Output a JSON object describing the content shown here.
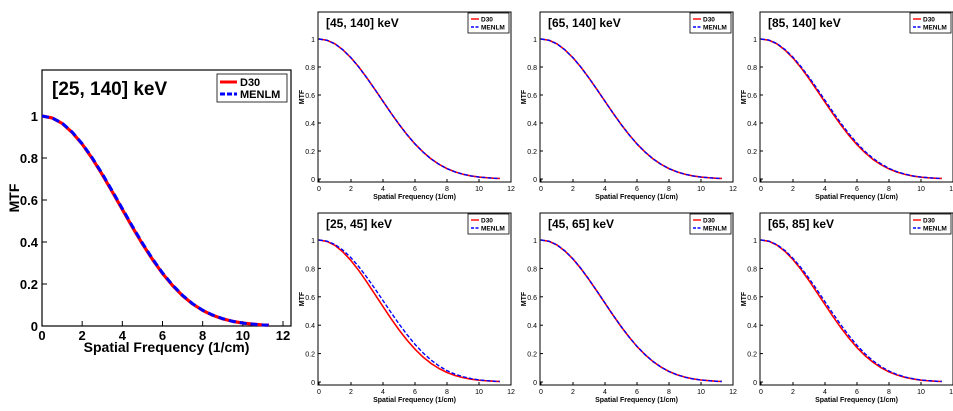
{
  "chart_data": [
    {
      "type": "line",
      "title": "[25, 140] keV",
      "xlabel": "Spatial Frequency (1/cm)",
      "ylabel": "MTF",
      "xlim": [
        0,
        12
      ],
      "ylim": [
        0,
        1
      ],
      "xticks": [
        "0",
        "2",
        "4",
        "6",
        "8",
        "10",
        "12"
      ],
      "yticks": [
        "0",
        "0.2",
        "0.4",
        "0.6",
        "0.8",
        "1"
      ],
      "grid": false,
      "legend": "top-right",
      "x": [
        0,
        0.5,
        1,
        1.5,
        2,
        2.5,
        3,
        3.5,
        4,
        4.5,
        5,
        5.5,
        6,
        6.5,
        7,
        7.5,
        8,
        8.5,
        9,
        9.5,
        10,
        10.5,
        11,
        11.3
      ],
      "series": [
        {
          "name": "D30",
          "color": "#ff0000",
          "values": [
            1.0,
            0.991,
            0.965,
            0.922,
            0.866,
            0.798,
            0.721,
            0.639,
            0.555,
            0.471,
            0.391,
            0.317,
            0.25,
            0.193,
            0.144,
            0.105,
            0.074,
            0.051,
            0.034,
            0.022,
            0.014,
            0.009,
            0.005,
            0.004
          ]
        },
        {
          "name": "MENLM",
          "color": "#0000ff",
          "values": [
            1.0,
            0.991,
            0.966,
            0.924,
            0.868,
            0.801,
            0.725,
            0.643,
            0.559,
            0.475,
            0.395,
            0.32,
            0.253,
            0.195,
            0.146,
            0.106,
            0.075,
            0.052,
            0.035,
            0.022,
            0.014,
            0.009,
            0.005,
            0.004
          ]
        }
      ]
    },
    {
      "type": "line",
      "title": "[45, 140] keV",
      "xlabel": "Spatial Frequency (1/cm)",
      "ylabel": "MTF",
      "xlim": [
        0,
        12
      ],
      "ylim": [
        0,
        1
      ],
      "xticks": [
        "0",
        "2",
        "4",
        "6",
        "8",
        "10",
        "12"
      ],
      "yticks": [
        "0",
        "0.2",
        "0.4",
        "0.6",
        "0.8",
        "1"
      ],
      "grid": false,
      "legend": "top-right",
      "x": [
        0,
        0.5,
        1,
        1.5,
        2,
        2.5,
        3,
        3.5,
        4,
        4.5,
        5,
        5.5,
        6,
        6.5,
        7,
        7.5,
        8,
        8.5,
        9,
        9.5,
        10,
        10.5,
        11,
        11.3
      ],
      "series": [
        {
          "name": "D30",
          "color": "#ff0000",
          "values": [
            1.0,
            0.991,
            0.965,
            0.922,
            0.866,
            0.798,
            0.721,
            0.639,
            0.555,
            0.471,
            0.391,
            0.317,
            0.25,
            0.193,
            0.144,
            0.105,
            0.074,
            0.051,
            0.034,
            0.022,
            0.014,
            0.009,
            0.005,
            0.004
          ]
        },
        {
          "name": "MENLM",
          "color": "#0000ff",
          "values": [
            1.0,
            0.991,
            0.965,
            0.922,
            0.866,
            0.798,
            0.721,
            0.639,
            0.555,
            0.471,
            0.391,
            0.317,
            0.25,
            0.193,
            0.144,
            0.105,
            0.074,
            0.051,
            0.034,
            0.022,
            0.014,
            0.009,
            0.005,
            0.004
          ]
        }
      ]
    },
    {
      "type": "line",
      "title": "[65, 140] keV",
      "xlabel": "Spatial Frequency (1/cm)",
      "ylabel": "MTF",
      "xlim": [
        0,
        12
      ],
      "ylim": [
        0,
        1
      ],
      "xticks": [
        "0",
        "2",
        "4",
        "6",
        "8",
        "10",
        "12"
      ],
      "yticks": [
        "0",
        "0.2",
        "0.4",
        "0.6",
        "0.8",
        "1"
      ],
      "grid": false,
      "legend": "top-right",
      "x": [
        0,
        0.5,
        1,
        1.5,
        2,
        2.5,
        3,
        3.5,
        4,
        4.5,
        5,
        5.5,
        6,
        6.5,
        7,
        7.5,
        8,
        8.5,
        9,
        9.5,
        10,
        10.5,
        11,
        11.3
      ],
      "series": [
        {
          "name": "D30",
          "color": "#ff0000",
          "values": [
            1.0,
            0.991,
            0.965,
            0.922,
            0.866,
            0.798,
            0.721,
            0.639,
            0.555,
            0.471,
            0.391,
            0.317,
            0.25,
            0.193,
            0.144,
            0.105,
            0.074,
            0.051,
            0.034,
            0.022,
            0.014,
            0.009,
            0.005,
            0.004
          ]
        },
        {
          "name": "MENLM",
          "color": "#0000ff",
          "values": [
            1.0,
            0.991,
            0.965,
            0.922,
            0.866,
            0.798,
            0.721,
            0.639,
            0.555,
            0.471,
            0.391,
            0.317,
            0.25,
            0.193,
            0.144,
            0.105,
            0.074,
            0.051,
            0.034,
            0.022,
            0.014,
            0.009,
            0.005,
            0.004
          ]
        }
      ]
    },
    {
      "type": "line",
      "title": "[85, 140] keV",
      "xlabel": "Spatial Frequency (1/cm)",
      "ylabel": "MTF",
      "xlim": [
        0,
        12
      ],
      "ylim": [
        0,
        1
      ],
      "xticks": [
        "0",
        "2",
        "4",
        "6",
        "8",
        "10",
        "12"
      ],
      "yticks": [
        "0",
        "0.2",
        "0.4",
        "0.6",
        "0.8",
        "1"
      ],
      "grid": false,
      "legend": "top-right",
      "x": [
        0,
        0.5,
        1,
        1.5,
        2,
        2.5,
        3,
        3.5,
        4,
        4.5,
        5,
        5.5,
        6,
        6.5,
        7,
        7.5,
        8,
        8.5,
        9,
        9.5,
        10,
        10.5,
        11,
        11.3
      ],
      "series": [
        {
          "name": "D30",
          "color": "#ff0000",
          "values": [
            1.0,
            0.991,
            0.965,
            0.921,
            0.864,
            0.795,
            0.717,
            0.634,
            0.549,
            0.465,
            0.385,
            0.311,
            0.245,
            0.188,
            0.14,
            0.102,
            0.072,
            0.049,
            0.033,
            0.021,
            0.013,
            0.008,
            0.005,
            0.004
          ]
        },
        {
          "name": "MENLM",
          "color": "#0000ff",
          "values": [
            1.0,
            0.992,
            0.967,
            0.925,
            0.87,
            0.803,
            0.727,
            0.646,
            0.562,
            0.478,
            0.398,
            0.323,
            0.256,
            0.197,
            0.148,
            0.108,
            0.076,
            0.052,
            0.035,
            0.022,
            0.014,
            0.009,
            0.005,
            0.004
          ]
        }
      ]
    },
    {
      "type": "line",
      "title": "[25, 45] keV",
      "xlabel": "Spatial Frequency (1/cm)",
      "ylabel": "MTF",
      "xlim": [
        0,
        12
      ],
      "ylim": [
        0,
        1
      ],
      "xticks": [
        "0",
        "2",
        "4",
        "6",
        "8",
        "10",
        "12"
      ],
      "yticks": [
        "0",
        "0.2",
        "0.4",
        "0.6",
        "0.8",
        "1"
      ],
      "grid": false,
      "legend": "top-right",
      "x": [
        0,
        0.5,
        1,
        1.5,
        2,
        2.5,
        3,
        3.5,
        4,
        4.5,
        5,
        5.5,
        6,
        6.5,
        7,
        7.5,
        8,
        8.5,
        9,
        9.5,
        10,
        10.5,
        11,
        11.3
      ],
      "series": [
        {
          "name": "D30",
          "color": "#ff0000",
          "values": [
            1.0,
            0.99,
            0.962,
            0.915,
            0.855,
            0.783,
            0.702,
            0.617,
            0.531,
            0.447,
            0.367,
            0.295,
            0.231,
            0.176,
            0.131,
            0.095,
            0.067,
            0.046,
            0.031,
            0.02,
            0.013,
            0.008,
            0.005,
            0.004
          ]
        },
        {
          "name": "MENLM",
          "color": "#0000ff",
          "values": [
            1.0,
            0.992,
            0.968,
            0.928,
            0.875,
            0.81,
            0.736,
            0.656,
            0.573,
            0.49,
            0.409,
            0.334,
            0.265,
            0.205,
            0.155,
            0.113,
            0.08,
            0.055,
            0.037,
            0.024,
            0.015,
            0.009,
            0.005,
            0.004
          ]
        }
      ]
    },
    {
      "type": "line",
      "title": "[45, 65] keV",
      "xlabel": "Spatial Frequency (1/cm)",
      "ylabel": "MTF",
      "xlim": [
        0,
        12
      ],
      "ylim": [
        0,
        1
      ],
      "xticks": [
        "0",
        "2",
        "4",
        "6",
        "8",
        "10",
        "12"
      ],
      "yticks": [
        "0",
        "0.2",
        "0.4",
        "0.6",
        "0.8",
        "1"
      ],
      "grid": false,
      "legend": "top-right",
      "x": [
        0,
        0.5,
        1,
        1.5,
        2,
        2.5,
        3,
        3.5,
        4,
        4.5,
        5,
        5.5,
        6,
        6.5,
        7,
        7.5,
        8,
        8.5,
        9,
        9.5,
        10,
        10.5,
        11,
        11.3
      ],
      "series": [
        {
          "name": "D30",
          "color": "#ff0000",
          "values": [
            1.0,
            0.991,
            0.965,
            0.922,
            0.866,
            0.798,
            0.721,
            0.639,
            0.555,
            0.471,
            0.391,
            0.317,
            0.25,
            0.193,
            0.144,
            0.105,
            0.074,
            0.051,
            0.034,
            0.022,
            0.014,
            0.009,
            0.005,
            0.004
          ]
        },
        {
          "name": "MENLM",
          "color": "#0000ff",
          "values": [
            1.0,
            0.991,
            0.966,
            0.923,
            0.867,
            0.799,
            0.722,
            0.64,
            0.556,
            0.472,
            0.392,
            0.318,
            0.251,
            0.193,
            0.145,
            0.105,
            0.074,
            0.051,
            0.034,
            0.022,
            0.014,
            0.009,
            0.005,
            0.004
          ]
        }
      ]
    },
    {
      "type": "line",
      "title": "[65, 85] keV",
      "xlabel": "Spatial Frequency (1/cm)",
      "ylabel": "MTF",
      "xlim": [
        0,
        12
      ],
      "ylim": [
        0,
        1
      ],
      "xticks": [
        "0",
        "2",
        "4",
        "6",
        "8",
        "10",
        "12"
      ],
      "yticks": [
        "0",
        "0.2",
        "0.4",
        "0.6",
        "0.8",
        "1"
      ],
      "grid": false,
      "legend": "top-right",
      "x": [
        0,
        0.5,
        1,
        1.5,
        2,
        2.5,
        3,
        3.5,
        4,
        4.5,
        5,
        5.5,
        6,
        6.5,
        7,
        7.5,
        8,
        8.5,
        9,
        9.5,
        10,
        10.5,
        11,
        11.3
      ],
      "series": [
        {
          "name": "D30",
          "color": "#ff0000",
          "values": [
            1.0,
            0.991,
            0.964,
            0.92,
            0.862,
            0.793,
            0.714,
            0.63,
            0.545,
            0.461,
            0.381,
            0.308,
            0.242,
            0.186,
            0.139,
            0.101,
            0.071,
            0.049,
            0.033,
            0.021,
            0.013,
            0.008,
            0.005,
            0.004
          ]
        },
        {
          "name": "MENLM",
          "color": "#0000ff",
          "values": [
            1.0,
            0.992,
            0.967,
            0.926,
            0.871,
            0.805,
            0.73,
            0.649,
            0.565,
            0.481,
            0.401,
            0.326,
            0.258,
            0.199,
            0.149,
            0.109,
            0.077,
            0.053,
            0.035,
            0.023,
            0.014,
            0.009,
            0.005,
            0.004
          ]
        }
      ]
    }
  ]
}
